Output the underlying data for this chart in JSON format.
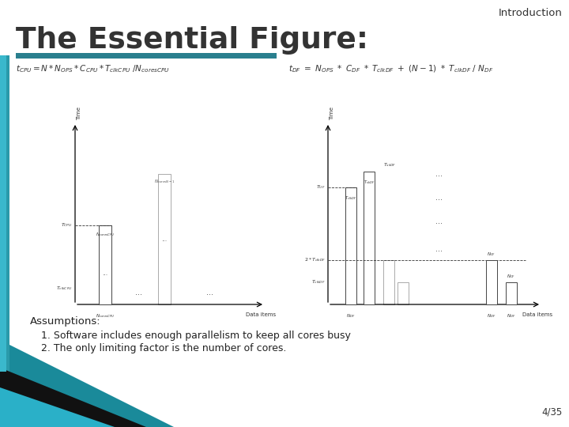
{
  "title": "The Essential Figure:",
  "header": "Introduction",
  "slide_num": "4/35",
  "bg_color": "#ffffff",
  "title_color": "#3a3a3a",
  "title_bar_color": "#2a7f8e",
  "left_border_color": "#2a9aaa",
  "assumptions_title": "Assumptions:",
  "assumption1": "1. Software includes enough parallelism to keep all cores busy",
  "assumption2": "2. The only limiting factor is the number of cores.",
  "bottom_teal": "#1a8a9a",
  "bottom_black": "#111111",
  "bottom_inner": "#2ab0c8"
}
